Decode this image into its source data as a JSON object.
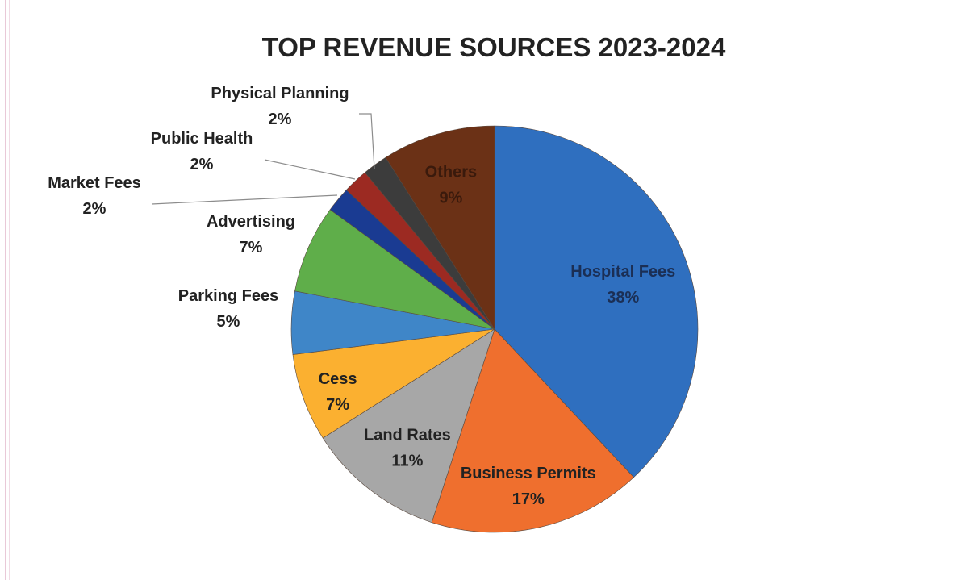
{
  "chart_data": {
    "type": "pie",
    "title": "TOP REVENUE SOURCES 2023-2024",
    "slices": [
      {
        "label": "Hospital Fees",
        "value": 38,
        "display": "38%",
        "color": "#2f6fbf"
      },
      {
        "label": "Business Permits",
        "value": 17,
        "display": "17%",
        "color": "#ef6f2e"
      },
      {
        "label": "Land Rates",
        "value": 11,
        "display": "11%",
        "color": "#a7a7a7"
      },
      {
        "label": "Cess",
        "value": 7,
        "display": "7%",
        "color": "#fbb030"
      },
      {
        "label": "Parking Fees",
        "value": 5,
        "display": "5%",
        "color": "#3f86c8"
      },
      {
        "label": "Advertising",
        "value": 7,
        "display": "7%",
        "color": "#5fae4a"
      },
      {
        "label": "Market Fees",
        "value": 2,
        "display": "2%",
        "color": "#1a3b92"
      },
      {
        "label": "Public Health",
        "value": 2,
        "display": "2%",
        "color": "#9c2a22"
      },
      {
        "label": "Physical Planning",
        "value": 2,
        "display": "2%",
        "color": "#3c3c3c"
      },
      {
        "label": "Others",
        "value": 9,
        "display": "9%",
        "color": "#6b3116"
      }
    ],
    "start_position": "12 o'clock",
    "direction": "clockwise",
    "legend": "none (data labels)"
  }
}
